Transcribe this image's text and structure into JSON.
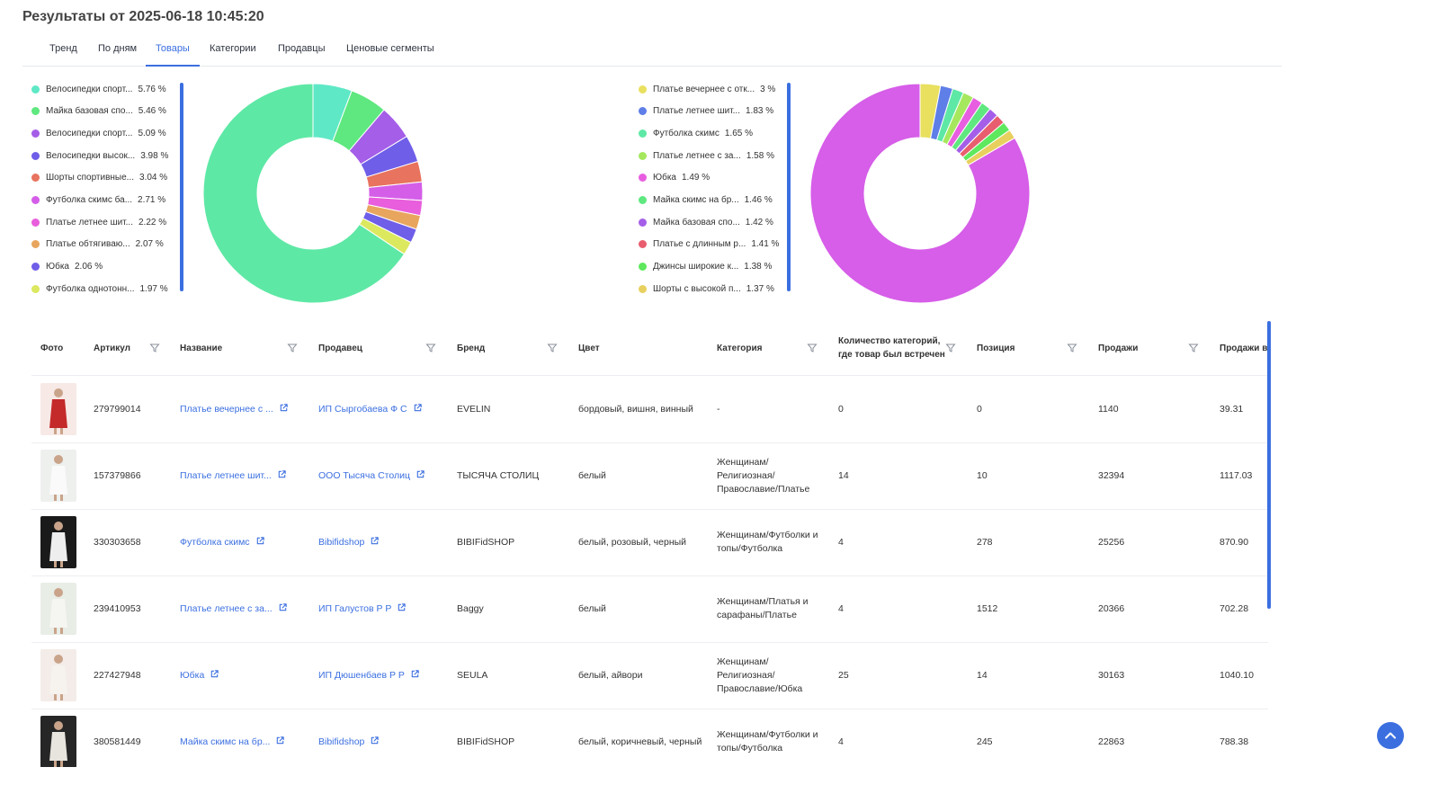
{
  "page": {
    "title": "Результаты от 2025-06-18 10:45:20"
  },
  "tabs": [
    {
      "label": "Тренд",
      "active": false
    },
    {
      "label": "По дням",
      "active": false
    },
    {
      "label": "Товары",
      "active": true
    },
    {
      "label": "Категории",
      "active": false
    },
    {
      "label": "Продавцы",
      "active": false
    },
    {
      "label": "Ценовые сегменты",
      "active": false
    }
  ],
  "chart_data": [
    {
      "type": "pie",
      "donut": true,
      "legend_placement": "left",
      "series": [
        {
          "name": "Велосипедки спорт...",
          "value": 5.76,
          "label": "5.76 %",
          "color": "#5ee8c6"
        },
        {
          "name": "Майка базовая спо...",
          "value": 5.46,
          "label": "5.46 %",
          "color": "#5ee87f"
        },
        {
          "name": "Велосипедки спорт...",
          "value": 5.09,
          "label": "5.09 %",
          "color": "#a55ee8"
        },
        {
          "name": "Велосипедки высок...",
          "value": 3.98,
          "label": "3.98 %",
          "color": "#6f5ee8"
        },
        {
          "name": "Шорты спортивные...",
          "value": 3.04,
          "label": "3.04 %",
          "color": "#e8735e"
        },
        {
          "name": "Футболка скимс ба...",
          "value": 2.71,
          "label": "2.71 %",
          "color": "#d45ee8"
        },
        {
          "name": "Платье летнее шит...",
          "value": 2.22,
          "label": "2.22 %",
          "color": "#e85edc"
        },
        {
          "name": "Платье обтягиваю...",
          "value": 2.07,
          "label": "2.07 %",
          "color": "#e8a55e"
        },
        {
          "name": "Юбка",
          "value": 2.06,
          "label": "2.06 %",
          "color": "#6f5ee8"
        },
        {
          "name": "Футболка однотонн...",
          "value": 1.97,
          "label": "1.97 %",
          "color": "#dce85e"
        }
      ],
      "other_color": "#5ee8a5"
    },
    {
      "type": "pie",
      "donut": true,
      "legend_placement": "left",
      "series": [
        {
          "name": "Платье вечернее с отк...",
          "value": 3,
          "label": "3 %",
          "color": "#e8e05e"
        },
        {
          "name": "Платье летнее шит...",
          "value": 1.83,
          "label": "1.83 %",
          "color": "#5e7ee8"
        },
        {
          "name": "Футболка скимс",
          "value": 1.65,
          "label": "1.65 %",
          "color": "#5ee8a5"
        },
        {
          "name": "Платье летнее с за...",
          "value": 1.58,
          "label": "1.58 %",
          "color": "#a5e85e"
        },
        {
          "name": "Юбка",
          "value": 1.49,
          "label": "1.49 %",
          "color": "#e85ee0"
        },
        {
          "name": "Майка скимс на бр...",
          "value": 1.46,
          "label": "1.46 %",
          "color": "#5ee87f"
        },
        {
          "name": "Майка базовая спо...",
          "value": 1.42,
          "label": "1.42 %",
          "color": "#a55ee8"
        },
        {
          "name": "Платье с длинным р...",
          "value": 1.41,
          "label": "1.41 %",
          "color": "#e85e6f"
        },
        {
          "name": "Джинсы широкие к...",
          "value": 1.38,
          "label": "1.38 %",
          "color": "#5ee85e"
        },
        {
          "name": "Шорты с высокой п...",
          "value": 1.37,
          "label": "1.37 %",
          "color": "#e8d05e"
        }
      ],
      "other_color": "#d65ee8"
    }
  ],
  "table": {
    "columns": [
      "Фото",
      "Артикул",
      "Название",
      "Продавец",
      "Бренд",
      "Цвет",
      "Категория",
      "Количество категорий, где товар был встречен",
      "Позиция",
      "Продажи",
      "Продажи в"
    ],
    "rows": [
      {
        "article": "279799014",
        "name": "Платье вечернее с ...",
        "seller": "ИП Сыргобаева Ф С",
        "brand": "EVELIN",
        "color": "бордовый, вишня, винный",
        "category": "-",
        "cat_count": "0",
        "position": "0",
        "sales": "1140",
        "sales_day": "39.31"
      },
      {
        "article": "157379866",
        "name": "Платье летнее шит...",
        "seller": "ООО Тысяча Столиц",
        "brand": "ТЫСЯЧА СТОЛИЦ",
        "color": "белый",
        "category": "Женщинам/ Религиозная/ Православие/Платье",
        "cat_count": "14",
        "position": "10",
        "sales": "32394",
        "sales_day": "1117.03"
      },
      {
        "article": "330303658",
        "name": "Футболка скимс",
        "seller": "Bibifidshop",
        "brand": "BIBIFidSHOP",
        "color": "белый, розовый, черный",
        "category": "Женщинам/Футболки и топы/Футболка",
        "cat_count": "4",
        "position": "278",
        "sales": "25256",
        "sales_day": "870.90"
      },
      {
        "article": "239410953",
        "name": "Платье летнее с за...",
        "seller": "ИП Галустов Р Р",
        "brand": "Baggy",
        "color": "белый",
        "category": "Женщинам/Платья и сарафаны/Платье",
        "cat_count": "4",
        "position": "1512",
        "sales": "20366",
        "sales_day": "702.28"
      },
      {
        "article": "227427948",
        "name": "Юбка",
        "seller": "ИП Дюшенбаев Р Р",
        "brand": "SEULA",
        "color": "белый, айвори",
        "category": "Женщинам/ Религиозная/ Православие/Юбка",
        "cat_count": "25",
        "position": "14",
        "sales": "30163",
        "sales_day": "1040.10"
      },
      {
        "article": "380581449",
        "name": "Майка скимс на бр...",
        "seller": "Bibifidshop",
        "brand": "BIBIFidSHOP",
        "color": "белый, коричневый, черный",
        "category": "Женщинам/Футболки и топы/Футболка",
        "cat_count": "4",
        "position": "245",
        "sales": "22863",
        "sales_day": "788.38"
      }
    ]
  }
}
